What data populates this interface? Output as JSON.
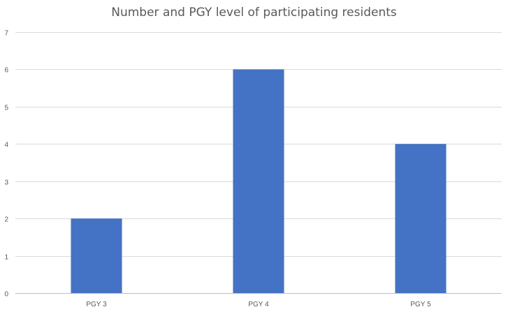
{
  "chart_data": {
    "type": "bar",
    "title": "Number and PGY level of participating residents",
    "categories": [
      "PGY 3",
      "PGY 4",
      "PGY 5"
    ],
    "values": [
      2,
      6,
      4
    ],
    "ylim": [
      0,
      7
    ],
    "yticks": [
      0,
      1,
      2,
      3,
      4,
      5,
      6,
      7
    ],
    "xlabel": "",
    "ylabel": "",
    "grid": true,
    "legend": "none",
    "bar_color": "#4472c4"
  }
}
